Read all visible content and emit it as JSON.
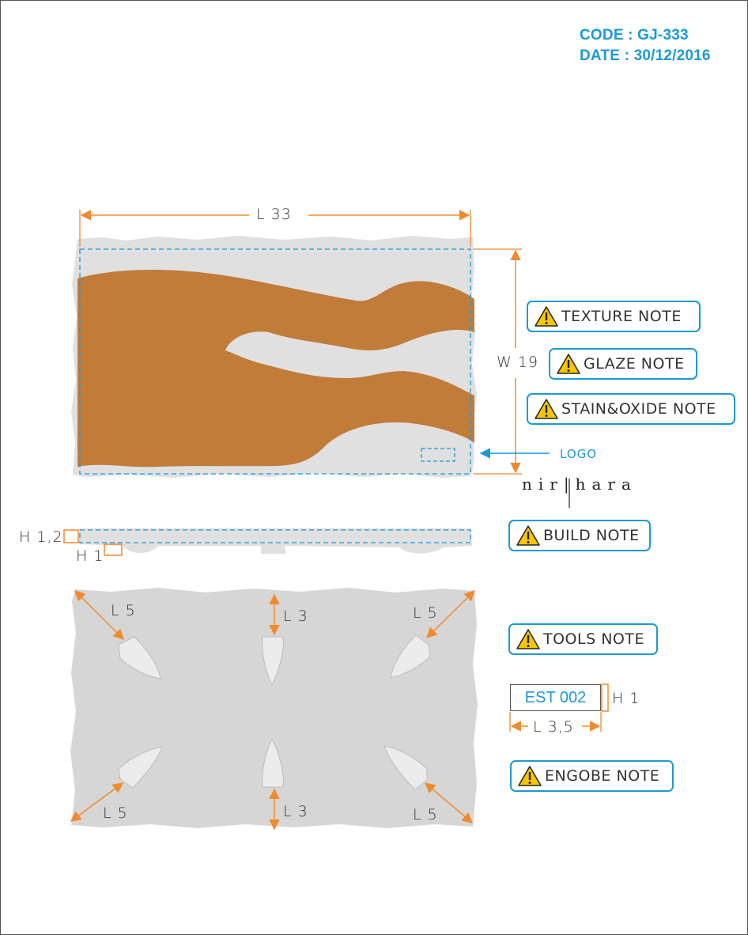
{
  "header": {
    "code": "CODE : GJ-333",
    "date": "DATE : 30/12/2016"
  },
  "dimensions": {
    "length_top": "L 33",
    "width_right": "W 19",
    "height_side": "H 1,2",
    "foot_height": "H 1",
    "bottom_view": {
      "top_left": "L 5",
      "top_center": "L 3",
      "top_right": "L 5",
      "bottom_left": "L 5",
      "bottom_center": "L 3",
      "bottom_right": "L 5"
    },
    "stamp_height": "H 1",
    "stamp_length": "L 3,5"
  },
  "notes": {
    "texture": "TEXTURE NOTE",
    "glaze": "GLAZE NOTE",
    "stain_oxide": "STAIN&OXIDE NOTE",
    "build": "BUILD NOTE",
    "tools": "TOOLS NOTE",
    "engobe": "ENGOBE NOTE"
  },
  "logo": {
    "label": "LOGO",
    "brand": "nir|hara"
  },
  "stamp": {
    "code": "EST 002"
  },
  "colors": {
    "accent_blue": "#1a9ad6",
    "dimension_orange": "#f08a2e",
    "glaze_brown": "#c27c3a",
    "clay_grey": "#d9d9d9"
  }
}
